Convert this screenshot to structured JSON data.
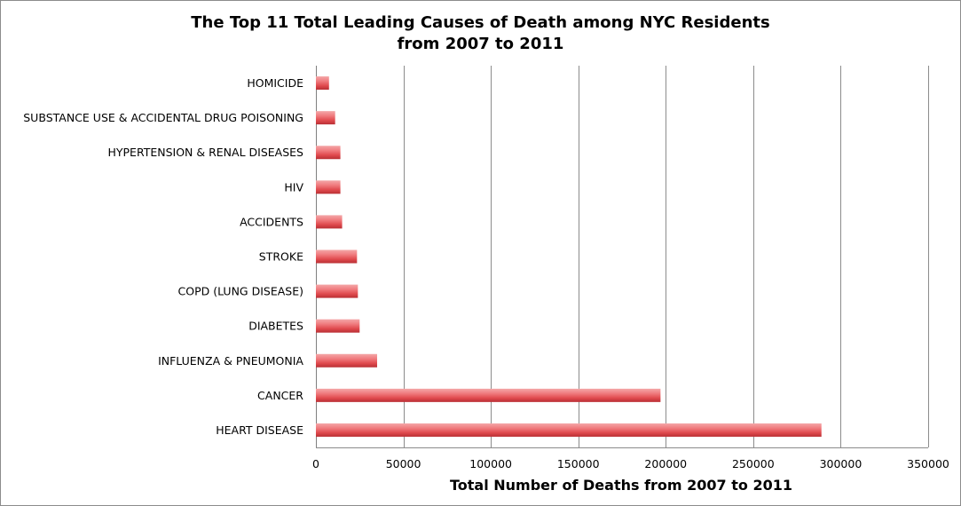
{
  "chart_data": {
    "type": "bar",
    "orientation": "horizontal",
    "title": [
      "The Top 11 Total Leading Causes of Death among NYC Residents",
      "from 2007 to 2011"
    ],
    "xlabel": "Total Number of Deaths from 2007 to 2011",
    "ylabel": "",
    "categories": [
      "HOMICIDE",
      "SUBSTANCE USE & ACCIDENTAL DRUG POISONING",
      "HYPERTENSION & RENAL DISEASES",
      "HIV",
      "ACCIDENTS",
      "STROKE",
      "COPD (LUNG DISEASE)",
      "DIABETES",
      "INFLUENZA & PNEUMONIA",
      "CANCER",
      "HEART DISEASE"
    ],
    "values": [
      7500,
      11000,
      14000,
      14000,
      15000,
      23500,
      24000,
      25000,
      35000,
      197000,
      289000
    ],
    "xlim": [
      0,
      350000
    ],
    "xticks": [
      0,
      50000,
      100000,
      150000,
      200000,
      250000,
      300000,
      350000
    ],
    "grid": "vertical",
    "legend": "none",
    "bar_color": "#e8585c"
  }
}
